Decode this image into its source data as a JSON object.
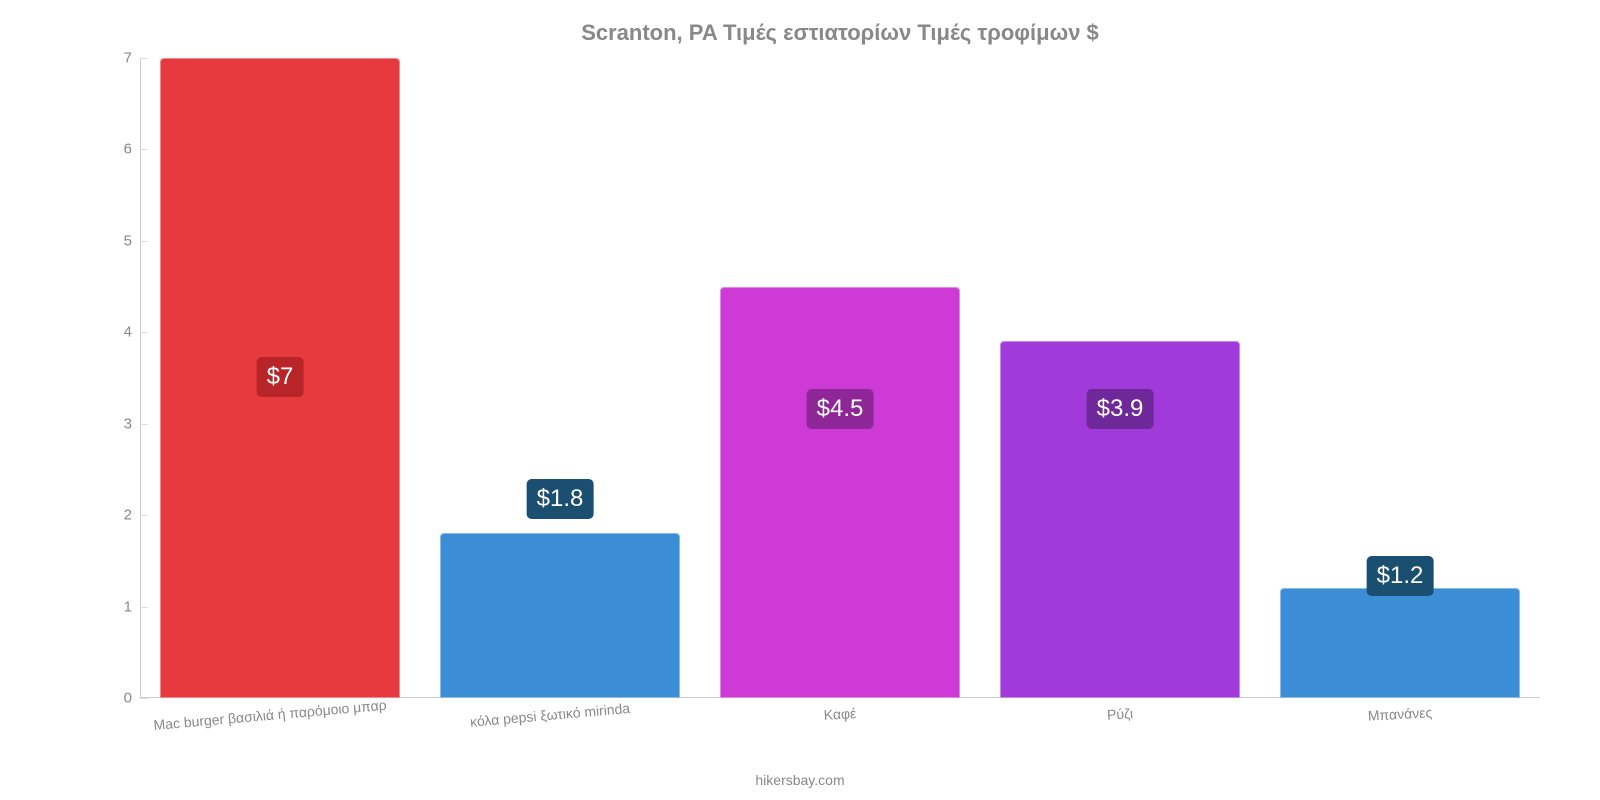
{
  "chart": {
    "type": "bar",
    "title": "Scranton, PA Τιμές εστιατορίων Τιμές τροφίμων $",
    "title_color": "#888888",
    "title_fontsize": 22,
    "background_color": "#ffffff",
    "ylim": [
      0,
      7
    ],
    "ytick_step": 1,
    "yticks": [
      0,
      1,
      2,
      3,
      4,
      5,
      6,
      7
    ],
    "ytick_labels": [
      "0",
      "1",
      "2",
      "3",
      "4",
      "5",
      "6",
      "7"
    ],
    "axis_color": "#cccccc",
    "tick_label_color": "#888888",
    "tick_fontsize": 15,
    "xlabel_fontsize": 14,
    "bar_width_ratio": 0.85,
    "bar_border_radius": 4,
    "categories": [
      "Mac burger βασιλιά ή παρόμοιο μπαρ",
      "κόλα pepsi ξωτικό mirinda",
      "Καφέ",
      "Ρύζι",
      "Μπανάνες"
    ],
    "values": [
      7,
      1.8,
      4.5,
      3.9,
      1.2
    ],
    "display_values": [
      "$7",
      "$1.8",
      "$4.5",
      "$3.9",
      "$1.2"
    ],
    "bar_colors": [
      "#e63a3f",
      "#3b8ed6",
      "#cd3ad6",
      "#a03adb",
      "#3b8ed6"
    ],
    "label_box_colors": [
      "#b82528",
      "#1b4f72",
      "#8f2697",
      "#6e2899",
      "#1b4f72"
    ],
    "label_text_color": "#ffffff",
    "label_fontsize": 24,
    "label_offsets_pct": [
      47,
      28,
      42,
      42,
      16
    ],
    "attribution": "hikersbay.com",
    "attribution_color": "#888888"
  }
}
